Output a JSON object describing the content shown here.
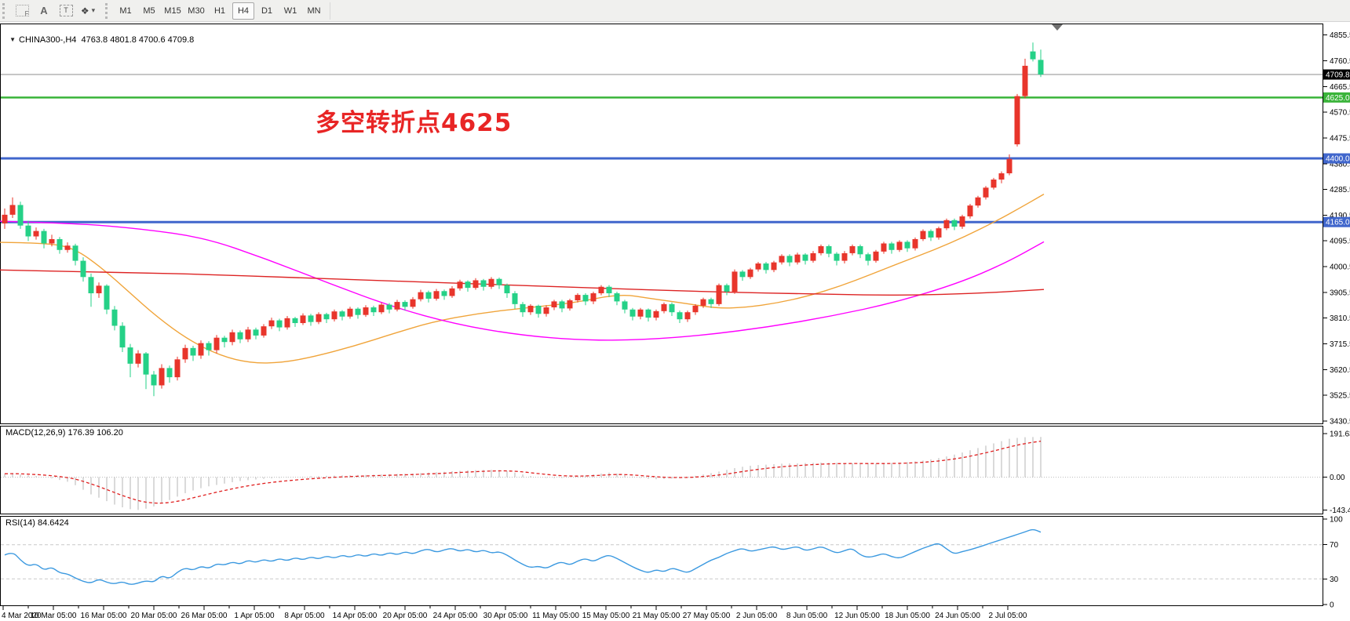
{
  "toolbar": {
    "tools": [
      {
        "name": "grid-f-tool",
        "glyph": "F"
      },
      {
        "name": "text-tool",
        "glyph": "A"
      },
      {
        "name": "label-tool",
        "glyph": "T"
      },
      {
        "name": "arrows-tool",
        "glyph": "❖",
        "caret": "▾"
      }
    ],
    "timeframes": [
      "M1",
      "M5",
      "M15",
      "M30",
      "H1",
      "H4",
      "D1",
      "W1",
      "MN"
    ],
    "active_timeframe": "H4"
  },
  "chart": {
    "symbol_period": "CHINA300-,H4",
    "ohlc_text": "4763.8 4801.8 4700.6 4709.8",
    "collapse_icon": "▼"
  },
  "colors": {
    "up_candle": "#e8352b",
    "down_candle": "#25d187",
    "ma_fast_orange": "#f0a43a",
    "ma_mid_magenta": "#ff00ff",
    "ma_slow_red": "#dd2424",
    "hline_blue": "#4066cc",
    "hline_green": "#3ab43a",
    "current_price_gray": "#8e8e8e",
    "macd_histogram": "#b4b4b4",
    "macd_signal": "#e02020",
    "rsi_line": "#3b99e0",
    "annotation_red": "#e82525",
    "price_box_black": "#000000"
  },
  "chart_data": {
    "type": "candlestick",
    "symbol": "CHINA300-",
    "timeframe": "H4",
    "ohlc_display": {
      "open": "4763.8",
      "high": "4801.8",
      "low": "4700.6",
      "close": "4709.8"
    },
    "y_ticks_main": [
      4855.5,
      4760.5,
      4665.5,
      4570.5,
      4475.5,
      4380.5,
      4285.5,
      4190.5,
      4095.5,
      4000.5,
      3905.5,
      3810.5,
      3715.5,
      3620.5,
      3525.5,
      3430.5
    ],
    "hlines": [
      {
        "value": 4709.8,
        "label": "4709.8",
        "color": "current_price_gray",
        "width": 1,
        "box": "price_box_black"
      },
      {
        "value": 4625.0,
        "label": "4625.0",
        "color": "hline_green",
        "width": 2.5,
        "box": "hline_green"
      },
      {
        "value": 4400.0,
        "label": "4400.0",
        "color": "hline_blue",
        "width": 3,
        "box": "hline_blue"
      },
      {
        "value": 4165.0,
        "label": "4165.0",
        "color": "hline_blue",
        "width": 3,
        "box": "hline_blue"
      }
    ],
    "x_labels": [
      "4 Mar 2020",
      "10 Mar 05:00",
      "16 Mar 05:00",
      "20 Mar 05:00",
      "26 Mar 05:00",
      "1 Apr 05:00",
      "8 Apr 05:00",
      "14 Apr 05:00",
      "20 Apr 05:00",
      "24 Apr 05:00",
      "30 Apr 05:00",
      "11 May 05:00",
      "15 May 05:00",
      "21 May 05:00",
      "27 May 05:00",
      "2 Jun 05:00",
      "8 Jun 05:00",
      "12 Jun 05:00",
      "18 Jun 05:00",
      "24 Jun 05:00",
      "2 Jul 05:00"
    ],
    "candles": [
      [
        4160,
        4215,
        4140,
        4192
      ],
      [
        4192,
        4256,
        4180,
        4228
      ],
      [
        4228,
        4240,
        4140,
        4152
      ],
      [
        4152,
        4170,
        4095,
        4112
      ],
      [
        4112,
        4145,
        4100,
        4132
      ],
      [
        4132,
        4140,
        4068,
        4086
      ],
      [
        4086,
        4118,
        4075,
        4102
      ],
      [
        4102,
        4110,
        4048,
        4062
      ],
      [
        4062,
        4090,
        4052,
        4078
      ],
      [
        4078,
        4085,
        4005,
        4022
      ],
      [
        4022,
        4035,
        3945,
        3962
      ],
      [
        3962,
        3975,
        3852,
        3902
      ],
      [
        3902,
        3942,
        3885,
        3930
      ],
      [
        3930,
        3935,
        3825,
        3842
      ],
      [
        3842,
        3855,
        3765,
        3782
      ],
      [
        3782,
        3795,
        3685,
        3702
      ],
      [
        3702,
        3715,
        3592,
        3642
      ],
      [
        3642,
        3692,
        3628,
        3680
      ],
      [
        3680,
        3685,
        3548,
        3602
      ],
      [
        3602,
        3615,
        3522,
        3562
      ],
      [
        3562,
        3640,
        3550,
        3626
      ],
      [
        3626,
        3635,
        3572,
        3592
      ],
      [
        3592,
        3668,
        3580,
        3658
      ],
      [
        3658,
        3712,
        3645,
        3700
      ],
      [
        3700,
        3708,
        3652,
        3672
      ],
      [
        3672,
        3728,
        3660,
        3718
      ],
      [
        3718,
        3725,
        3672,
        3692
      ],
      [
        3692,
        3748,
        3680,
        3738
      ],
      [
        3738,
        3745,
        3702,
        3722
      ],
      [
        3722,
        3768,
        3710,
        3758
      ],
      [
        3758,
        3765,
        3718,
        3732
      ],
      [
        3732,
        3778,
        3722,
        3768
      ],
      [
        3768,
        3775,
        3732,
        3746
      ],
      [
        3746,
        3788,
        3738,
        3780
      ],
      [
        3780,
        3812,
        3770,
        3802
      ],
      [
        3802,
        3808,
        3762,
        3776
      ],
      [
        3776,
        3818,
        3768,
        3810
      ],
      [
        3810,
        3815,
        3778,
        3792
      ],
      [
        3792,
        3828,
        3785,
        3820
      ],
      [
        3820,
        3826,
        3782,
        3796
      ],
      [
        3796,
        3832,
        3788,
        3825
      ],
      [
        3825,
        3830,
        3792,
        3806
      ],
      [
        3806,
        3842,
        3798,
        3835
      ],
      [
        3835,
        3840,
        3802,
        3816
      ],
      [
        3816,
        3852,
        3808,
        3845
      ],
      [
        3845,
        3850,
        3808,
        3822
      ],
      [
        3822,
        3858,
        3815,
        3850
      ],
      [
        3850,
        3856,
        3818,
        3832
      ],
      [
        3832,
        3868,
        3825,
        3860
      ],
      [
        3860,
        3866,
        3828,
        3842
      ],
      [
        3842,
        3878,
        3835,
        3870
      ],
      [
        3870,
        3876,
        3838,
        3852
      ],
      [
        3852,
        3888,
        3845,
        3880
      ],
      [
        3880,
        3915,
        3872,
        3906
      ],
      [
        3906,
        3912,
        3868,
        3882
      ],
      [
        3882,
        3918,
        3875,
        3910
      ],
      [
        3910,
        3916,
        3878,
        3892
      ],
      [
        3892,
        3928,
        3885,
        3920
      ],
      [
        3920,
        3952,
        3912,
        3945
      ],
      [
        3945,
        3950,
        3908,
        3922
      ],
      [
        3922,
        3958,
        3915,
        3950
      ],
      [
        3950,
        3955,
        3912,
        3926
      ],
      [
        3926,
        3962,
        3918,
        3955
      ],
      [
        3955,
        3960,
        3918,
        3932
      ],
      [
        3932,
        3938,
        3885,
        3902
      ],
      [
        3902,
        3910,
        3845,
        3862
      ],
      [
        3862,
        3870,
        3815,
        3832
      ],
      [
        3832,
        3862,
        3822,
        3856
      ],
      [
        3856,
        3860,
        3812,
        3826
      ],
      [
        3826,
        3858,
        3816,
        3850
      ],
      [
        3850,
        3878,
        3840,
        3872
      ],
      [
        3872,
        3878,
        3832,
        3846
      ],
      [
        3846,
        3882,
        3838,
        3876
      ],
      [
        3876,
        3902,
        3868,
        3896
      ],
      [
        3896,
        3902,
        3858,
        3872
      ],
      [
        3872,
        3908,
        3862,
        3902
      ],
      [
        3902,
        3932,
        3895,
        3926
      ],
      [
        3926,
        3932,
        3888,
        3902
      ],
      [
        3902,
        3908,
        3858,
        3872
      ],
      [
        3872,
        3878,
        3828,
        3842
      ],
      [
        3842,
        3848,
        3802,
        3816
      ],
      [
        3816,
        3848,
        3806,
        3842
      ],
      [
        3842,
        3846,
        3798,
        3812
      ],
      [
        3812,
        3842,
        3802,
        3836
      ],
      [
        3836,
        3868,
        3828,
        3862
      ],
      [
        3862,
        3868,
        3818,
        3832
      ],
      [
        3832,
        3838,
        3792,
        3806
      ],
      [
        3806,
        3838,
        3796,
        3832
      ],
      [
        3832,
        3862,
        3822,
        3856
      ],
      [
        3856,
        3886,
        3848,
        3880
      ],
      [
        3880,
        3886,
        3848,
        3862
      ],
      [
        3862,
        3938,
        3855,
        3932
      ],
      [
        3932,
        3938,
        3895,
        3908
      ],
      [
        3908,
        3990,
        3900,
        3982
      ],
      [
        3982,
        3988,
        3948,
        3962
      ],
      [
        3962,
        3996,
        3955,
        3990
      ],
      [
        3990,
        4018,
        3982,
        4012
      ],
      [
        4012,
        4018,
        3975,
        3988
      ],
      [
        3988,
        4022,
        3980,
        4016
      ],
      [
        4016,
        4046,
        4008,
        4040
      ],
      [
        4040,
        4046,
        4002,
        4016
      ],
      [
        4016,
        4052,
        4008,
        4045
      ],
      [
        4045,
        4050,
        4008,
        4022
      ],
      [
        4022,
        4058,
        4015,
        4050
      ],
      [
        4050,
        4082,
        4042,
        4076
      ],
      [
        4076,
        4082,
        4035,
        4048
      ],
      [
        4048,
        4054,
        4005,
        4022
      ],
      [
        4022,
        4058,
        4012,
        4050
      ],
      [
        4050,
        4082,
        4042,
        4076
      ],
      [
        4076,
        4082,
        4032,
        4046
      ],
      [
        4046,
        4052,
        4005,
        4022
      ],
      [
        4022,
        4062,
        4015,
        4056
      ],
      [
        4056,
        4092,
        4048,
        4086
      ],
      [
        4086,
        4092,
        4048,
        4062
      ],
      [
        4062,
        4098,
        4055,
        4092
      ],
      [
        4092,
        4098,
        4055,
        4068
      ],
      [
        4068,
        4108,
        4060,
        4102
      ],
      [
        4102,
        4138,
        4095,
        4132
      ],
      [
        4132,
        4138,
        4095,
        4108
      ],
      [
        4108,
        4148,
        4100,
        4142
      ],
      [
        4142,
        4178,
        4135,
        4172
      ],
      [
        4172,
        4178,
        4135,
        4148
      ],
      [
        4148,
        4192,
        4140,
        4186
      ],
      [
        4186,
        4232,
        4178,
        4226
      ],
      [
        4226,
        4262,
        4218,
        4256
      ],
      [
        4256,
        4298,
        4248,
        4292
      ],
      [
        4292,
        4328,
        4285,
        4322
      ],
      [
        4322,
        4352,
        4308,
        4345
      ],
      [
        4345,
        4415,
        4338,
        4398
      ],
      [
        4452,
        4638,
        4444,
        4630
      ],
      [
        4630,
        4768,
        4622,
        4742
      ],
      [
        4795,
        4828,
        4758,
        4766
      ],
      [
        4763.8,
        4801.8,
        4700.6,
        4709.8
      ]
    ],
    "moving_averages": {
      "fast_orange": [
        [
          0,
          4090
        ],
        [
          60,
          4088
        ],
        [
          95,
          4068
        ],
        [
          130,
          3995
        ],
        [
          165,
          3905
        ],
        [
          200,
          3815
        ],
        [
          240,
          3730
        ],
        [
          280,
          3672
        ],
        [
          320,
          3644
        ],
        [
          360,
          3646
        ],
        [
          400,
          3668
        ],
        [
          450,
          3706
        ],
        [
          500,
          3752
        ],
        [
          550,
          3796
        ],
        [
          610,
          3828
        ],
        [
          670,
          3848
        ],
        [
          730,
          3866
        ],
        [
          790,
          3900
        ],
        [
          830,
          3882
        ],
        [
          870,
          3866
        ],
        [
          915,
          3846
        ],
        [
          950,
          3850
        ],
        [
          990,
          3866
        ],
        [
          1030,
          3892
        ],
        [
          1070,
          3928
        ],
        [
          1110,
          3972
        ],
        [
          1150,
          4018
        ],
        [
          1190,
          4062
        ],
        [
          1230,
          4112
        ],
        [
          1270,
          4170
        ],
        [
          1300,
          4218
        ],
        [
          1330,
          4268
        ]
      ],
      "mid_magenta": [
        [
          0,
          4168
        ],
        [
          100,
          4160
        ],
        [
          180,
          4140
        ],
        [
          260,
          4108
        ],
        [
          340,
          4028
        ],
        [
          420,
          3938
        ],
        [
          500,
          3852
        ],
        [
          580,
          3788
        ],
        [
          660,
          3748
        ],
        [
          740,
          3728
        ],
        [
          820,
          3730
        ],
        [
          900,
          3748
        ],
        [
          980,
          3778
        ],
        [
          1060,
          3818
        ],
        [
          1140,
          3868
        ],
        [
          1220,
          3938
        ],
        [
          1280,
          4012
        ],
        [
          1330,
          4092
        ]
      ],
      "slow_red": [
        [
          0,
          3988
        ],
        [
          150,
          3980
        ],
        [
          300,
          3968
        ],
        [
          450,
          3952
        ],
        [
          600,
          3938
        ],
        [
          750,
          3922
        ],
        [
          900,
          3908
        ],
        [
          1050,
          3898
        ],
        [
          1150,
          3894
        ],
        [
          1250,
          3902
        ],
        [
          1330,
          3916
        ]
      ]
    },
    "macd": {
      "display": "MACD(12,26,9) 176.39 106.20",
      "params": "12,26,9",
      "value_main": 176.39,
      "value_signal": 106.2,
      "ticks": [
        191.63,
        0.0,
        -143.44
      ],
      "tick_labels": [
        "191.63",
        "0.00",
        "-143.44"
      ],
      "main": [
        15,
        18,
        12,
        8,
        5,
        0,
        -5,
        -12,
        -20,
        -35,
        -55,
        -75,
        -90,
        -105,
        -120,
        -132,
        -140,
        -143.4,
        -138,
        -128,
        -115,
        -100,
        -85,
        -70,
        -58,
        -48,
        -40,
        -34,
        -28,
        -22,
        -17,
        -13,
        -10,
        -7,
        -5,
        -3,
        -2,
        0,
        2,
        4,
        5,
        6,
        7,
        8,
        9,
        10,
        10,
        11,
        12,
        13,
        14,
        15,
        16,
        18,
        20,
        22,
        24,
        26,
        28,
        30,
        31,
        32,
        32,
        31,
        27,
        20,
        12,
        5,
        0,
        -3,
        -4,
        -3,
        0,
        4,
        8,
        12,
        16,
        20,
        16,
        10,
        3,
        -3,
        -7,
        -9,
        -8,
        -6,
        -3,
        1,
        6,
        12,
        18,
        25,
        32,
        40,
        46,
        50,
        53,
        55,
        57,
        59,
        60,
        61,
        62,
        63,
        64,
        64,
        63,
        62,
        61,
        60,
        59,
        59,
        60,
        62,
        64,
        66,
        69,
        73,
        78,
        84,
        91,
        99,
        108,
        118,
        128,
        138,
        148,
        158,
        168,
        172,
        175,
        176,
        176.39
      ]
    },
    "rsi": {
      "display": "RSI(14) 84.6424",
      "period": 14,
      "value": 84.6424,
      "ticks": [
        100,
        70,
        30,
        0
      ],
      "tick_labels": [
        "100",
        "70",
        "30",
        "0"
      ],
      "levels": [
        70,
        30
      ],
      "values": [
        58,
        62,
        52,
        45,
        48,
        40,
        44,
        37,
        36,
        31,
        27,
        25,
        30,
        26,
        24,
        27,
        23,
        25,
        28,
        26,
        34,
        30,
        38,
        43,
        40,
        45,
        42,
        48,
        46,
        50,
        47,
        52,
        49,
        53,
        50,
        54,
        51,
        55,
        52,
        56,
        53,
        57,
        54,
        58,
        55,
        59,
        56,
        60,
        57,
        61,
        58,
        62,
        59,
        63,
        65,
        61,
        64,
        66,
        62,
        65,
        61,
        64,
        60,
        62,
        58,
        52,
        47,
        43,
        45,
        42,
        47,
        50,
        46,
        51,
        54,
        50,
        55,
        58,
        54,
        49,
        44,
        40,
        37,
        41,
        38,
        43,
        40,
        37,
        42,
        47,
        52,
        55,
        60,
        63,
        66,
        62,
        64,
        66,
        68,
        64,
        66,
        68,
        63,
        65,
        68,
        64,
        60,
        63,
        66,
        58,
        55,
        57,
        60,
        56,
        54,
        58,
        62,
        66,
        69,
        72,
        65,
        59,
        62,
        64,
        67,
        70,
        73,
        76,
        79,
        82,
        85,
        88.5,
        84.64
      ]
    },
    "annotation": {
      "text": "多空转折点4625"
    }
  }
}
